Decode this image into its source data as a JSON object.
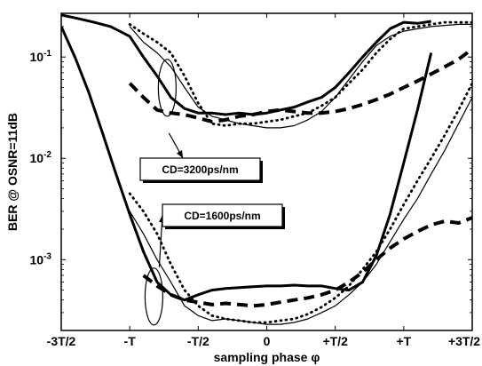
{
  "chart_data": {
    "type": "line",
    "title": "",
    "xlabel": "sampling phase φ",
    "ylabel": "BER @ OSNR=11dB",
    "xlim": [
      -1.5,
      1.5
    ],
    "ylim": [
      0.0002,
      0.27
    ],
    "y_scale": "log",
    "grid": false,
    "x_ticks": [
      {
        "value": -1.5,
        "label": "-3T/2"
      },
      {
        "value": -1.0,
        "label": "-T"
      },
      {
        "value": -0.5,
        "label": "-T/2"
      },
      {
        "value": 0.0,
        "label": "0"
      },
      {
        "value": 0.5,
        "label": "+T/2"
      },
      {
        "value": 1.0,
        "label": "+T"
      },
      {
        "value": 1.5,
        "label": "+3T/2"
      }
    ],
    "y_ticks": [
      {
        "value": 0.1,
        "base": "10",
        "exp": "-1"
      },
      {
        "value": 0.01,
        "base": "10",
        "exp": "-2"
      },
      {
        "value": 0.001,
        "base": "10",
        "exp": "-3"
      }
    ],
    "annotations": [
      {
        "text": "CD=3200ps/nm",
        "points_to_x": -0.72,
        "points_to_y": 0.03
      },
      {
        "text": "CD=1600ps/nm",
        "points_to_x": -0.83,
        "points_to_y": 0.00045
      }
    ],
    "series": [
      {
        "style": "thick-solid",
        "points": [
          [
            -1.5,
            0.26
          ],
          [
            -1.38,
            0.24
          ],
          [
            -1.26,
            0.22
          ],
          [
            -1.14,
            0.2
          ],
          [
            -1.0,
            0.16
          ],
          [
            -0.9,
            0.1
          ],
          [
            -0.8,
            0.065
          ],
          [
            -0.7,
            0.04
          ],
          [
            -0.6,
            0.031
          ],
          [
            -0.5,
            0.028
          ],
          [
            -0.4,
            0.028
          ],
          [
            -0.3,
            0.027
          ],
          [
            -0.2,
            0.028
          ],
          [
            -0.1,
            0.027
          ],
          [
            0.0,
            0.028
          ],
          [
            0.1,
            0.03
          ],
          [
            0.2,
            0.032
          ],
          [
            0.3,
            0.036
          ],
          [
            0.4,
            0.04
          ],
          [
            0.5,
            0.05
          ],
          [
            0.6,
            0.07
          ],
          [
            0.7,
            0.1
          ],
          [
            0.8,
            0.14
          ],
          [
            0.9,
            0.19
          ],
          [
            1.0,
            0.22
          ],
          [
            1.1,
            0.215
          ],
          [
            1.2,
            0.225
          ]
        ]
      },
      {
        "style": "thin-solid",
        "points": [
          [
            -1.0,
            0.2
          ],
          [
            -0.9,
            0.14
          ],
          [
            -0.8,
            0.11
          ],
          [
            -0.7,
            0.08
          ],
          [
            -0.6,
            0.05
          ],
          [
            -0.5,
            0.032
          ],
          [
            -0.4,
            0.026
          ],
          [
            -0.3,
            0.024
          ],
          [
            -0.2,
            0.022
          ],
          [
            -0.1,
            0.021
          ],
          [
            0.0,
            0.02
          ],
          [
            0.1,
            0.02
          ],
          [
            0.2,
            0.021
          ],
          [
            0.3,
            0.024
          ],
          [
            0.4,
            0.029
          ],
          [
            0.5,
            0.04
          ],
          [
            0.6,
            0.06
          ],
          [
            0.7,
            0.09
          ],
          [
            0.8,
            0.13
          ],
          [
            0.9,
            0.16
          ],
          [
            1.0,
            0.18
          ],
          [
            1.1,
            0.19
          ],
          [
            1.2,
            0.2
          ],
          [
            1.4,
            0.21
          ],
          [
            1.5,
            0.21
          ]
        ]
      },
      {
        "style": "dotted",
        "points": [
          [
            -1.0,
            0.21
          ],
          [
            -0.9,
            0.17
          ],
          [
            -0.8,
            0.14
          ],
          [
            -0.7,
            0.11
          ],
          [
            -0.6,
            0.065
          ],
          [
            -0.5,
            0.035
          ],
          [
            -0.4,
            0.022
          ],
          [
            -0.3,
            0.021
          ],
          [
            -0.2,
            0.022
          ],
          [
            -0.1,
            0.022
          ],
          [
            0.0,
            0.023
          ],
          [
            0.1,
            0.024
          ],
          [
            0.2,
            0.026
          ],
          [
            0.3,
            0.028
          ],
          [
            0.4,
            0.033
          ],
          [
            0.5,
            0.04
          ],
          [
            0.6,
            0.055
          ],
          [
            0.7,
            0.075
          ],
          [
            0.8,
            0.11
          ],
          [
            0.9,
            0.15
          ],
          [
            1.0,
            0.19
          ],
          [
            1.1,
            0.2
          ],
          [
            1.2,
            0.21
          ],
          [
            1.3,
            0.22
          ],
          [
            1.5,
            0.22
          ]
        ]
      },
      {
        "style": "dashed",
        "points": [
          [
            -1.0,
            0.055
          ],
          [
            -0.9,
            0.04
          ],
          [
            -0.8,
            0.03
          ],
          [
            -0.7,
            0.028
          ],
          [
            -0.6,
            0.027
          ],
          [
            -0.5,
            0.025
          ],
          [
            -0.4,
            0.023
          ],
          [
            -0.3,
            0.024
          ],
          [
            -0.2,
            0.026
          ],
          [
            -0.1,
            0.027
          ],
          [
            0.0,
            0.029
          ],
          [
            0.1,
            0.03
          ],
          [
            0.2,
            0.029
          ],
          [
            0.3,
            0.028
          ],
          [
            0.4,
            0.028
          ],
          [
            0.5,
            0.029
          ],
          [
            0.6,
            0.031
          ],
          [
            0.7,
            0.034
          ],
          [
            0.8,
            0.038
          ],
          [
            0.9,
            0.043
          ],
          [
            1.0,
            0.05
          ],
          [
            1.1,
            0.058
          ],
          [
            1.2,
            0.068
          ],
          [
            1.3,
            0.08
          ],
          [
            1.4,
            0.095
          ],
          [
            1.5,
            0.12
          ]
        ]
      },
      {
        "style": "thick-solid",
        "points": [
          [
            -1.5,
            0.2
          ],
          [
            -1.4,
            0.1
          ],
          [
            -1.3,
            0.045
          ],
          [
            -1.2,
            0.018
          ],
          [
            -1.1,
            0.007
          ],
          [
            -1.0,
            0.0028
          ],
          [
            -0.9,
            0.0012
          ],
          [
            -0.8,
            0.0006
          ],
          [
            -0.7,
            0.00045
          ],
          [
            -0.6,
            0.0004
          ],
          [
            -0.5,
            0.00045
          ],
          [
            -0.4,
            0.0005
          ],
          [
            -0.3,
            0.00052
          ],
          [
            -0.2,
            0.00053
          ],
          [
            -0.1,
            0.00054
          ],
          [
            0.0,
            0.00055
          ],
          [
            0.1,
            0.00055
          ],
          [
            0.2,
            0.00056
          ],
          [
            0.3,
            0.00055
          ],
          [
            0.4,
            0.00055
          ],
          [
            0.5,
            0.00052
          ],
          [
            0.6,
            0.0005
          ],
          [
            0.7,
            0.0006
          ],
          [
            0.8,
            0.0011
          ],
          [
            0.9,
            0.0028
          ],
          [
            1.0,
            0.009
          ],
          [
            1.1,
            0.03
          ],
          [
            1.2,
            0.11
          ]
        ]
      },
      {
        "style": "thin-solid",
        "points": [
          [
            -1.0,
            0.003
          ],
          [
            -0.9,
            0.0018
          ],
          [
            -0.8,
            0.001
          ],
          [
            -0.7,
            0.0006
          ],
          [
            -0.6,
            0.00035
          ],
          [
            -0.5,
            0.00028
          ],
          [
            -0.4,
            0.00025
          ],
          [
            -0.3,
            0.00026
          ],
          [
            -0.2,
            0.00025
          ],
          [
            -0.1,
            0.00024
          ],
          [
            0.0,
            0.00023
          ],
          [
            0.1,
            0.00023
          ],
          [
            0.2,
            0.00024
          ],
          [
            0.3,
            0.00026
          ],
          [
            0.4,
            0.0003
          ],
          [
            0.5,
            0.00035
          ],
          [
            0.6,
            0.00045
          ],
          [
            0.7,
            0.0006
          ],
          [
            0.8,
            0.0009
          ],
          [
            0.9,
            0.0015
          ],
          [
            1.0,
            0.0025
          ],
          [
            1.1,
            0.004
          ],
          [
            1.2,
            0.007
          ],
          [
            1.3,
            0.012
          ],
          [
            1.4,
            0.022
          ],
          [
            1.5,
            0.04
          ]
        ]
      },
      {
        "style": "dotted",
        "points": [
          [
            -1.0,
            0.0045
          ],
          [
            -0.9,
            0.003
          ],
          [
            -0.8,
            0.0018
          ],
          [
            -0.7,
            0.0009
          ],
          [
            -0.6,
            0.0005
          ],
          [
            -0.5,
            0.00035
          ],
          [
            -0.4,
            0.00028
          ],
          [
            -0.3,
            0.00026
          ],
          [
            -0.2,
            0.00025
          ],
          [
            -0.1,
            0.00024
          ],
          [
            0.0,
            0.00024
          ],
          [
            0.1,
            0.00025
          ],
          [
            0.2,
            0.00026
          ],
          [
            0.3,
            0.00029
          ],
          [
            0.4,
            0.00034
          ],
          [
            0.5,
            0.00042
          ],
          [
            0.6,
            0.00055
          ],
          [
            0.7,
            0.0008
          ],
          [
            0.8,
            0.0012
          ],
          [
            0.9,
            0.002
          ],
          [
            1.0,
            0.0035
          ],
          [
            1.1,
            0.006
          ],
          [
            1.2,
            0.01
          ],
          [
            1.3,
            0.017
          ],
          [
            1.4,
            0.03
          ],
          [
            1.5,
            0.055
          ]
        ]
      },
      {
        "style": "dashed",
        "points": [
          [
            -0.9,
            0.0007
          ],
          [
            -0.8,
            0.00055
          ],
          [
            -0.7,
            0.00045
          ],
          [
            -0.6,
            0.0004
          ],
          [
            -0.5,
            0.00038
          ],
          [
            -0.4,
            0.00036
          ],
          [
            -0.3,
            0.00037
          ],
          [
            -0.2,
            0.00036
          ],
          [
            -0.1,
            0.00035
          ],
          [
            0.0,
            0.00036
          ],
          [
            0.1,
            0.00038
          ],
          [
            0.2,
            0.0004
          ],
          [
            0.3,
            0.00042
          ],
          [
            0.4,
            0.00045
          ],
          [
            0.5,
            0.0005
          ],
          [
            0.6,
            0.0006
          ],
          [
            0.7,
            0.00075
          ],
          [
            0.8,
            0.001
          ],
          [
            0.9,
            0.0013
          ],
          [
            1.0,
            0.0016
          ],
          [
            1.1,
            0.0019
          ],
          [
            1.2,
            0.0022
          ],
          [
            1.3,
            0.0024
          ],
          [
            1.4,
            0.0023
          ],
          [
            1.5,
            0.0026
          ]
        ]
      }
    ]
  }
}
